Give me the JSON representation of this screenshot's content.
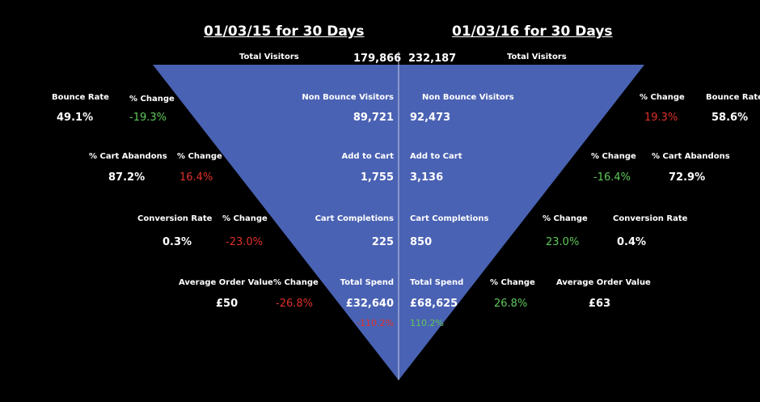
{
  "header": {
    "left_period": "01/03/15 for 30  Days",
    "right_period": "01/03/16 for 30  Days"
  },
  "colors": {
    "funnel": "#4a62b3",
    "negative": "#e0302a",
    "positive": "#5fc95a",
    "background": "#000000"
  },
  "chart_data": {
    "type": "funnel",
    "stages": [
      {
        "label": "Total Visitors",
        "left": "179,866",
        "right": "232,187"
      },
      {
        "label": "Non Bounce Visitors",
        "left": "89,721",
        "right": "92,473"
      },
      {
        "label": "Add to Cart",
        "left": "1,755",
        "right": "3,136"
      },
      {
        "label": "Cart Completions",
        "left": "225",
        "right": "850"
      },
      {
        "label": "Total Spend",
        "left": "£32,640",
        "right": "£68,625",
        "left_change": "-110.2%",
        "right_change": "110.2%"
      }
    ],
    "change_label": "% Change",
    "left_metrics": [
      {
        "label": "Bounce Rate",
        "value": "49.1%",
        "change": "-19.3%"
      },
      {
        "label": "% Cart Abandons",
        "value": "87.2%",
        "change": "16.4%"
      },
      {
        "label": "Conversion Rate",
        "value": "0.3%",
        "change": "-23.0%"
      },
      {
        "label": "Average Order Value",
        "value": "£50",
        "change": "-26.8%"
      }
    ],
    "right_metrics": [
      {
        "label": "Bounce Rate",
        "value": "58.6%",
        "change": "19.3%"
      },
      {
        "label": "% Cart Abandons",
        "value": "72.9%",
        "change": "-16.4%"
      },
      {
        "label": "Conversion Rate",
        "value": "0.4%",
        "change": "23.0%"
      },
      {
        "label": "Average Order Value",
        "value": "£63",
        "change": "26.8%"
      }
    ]
  }
}
